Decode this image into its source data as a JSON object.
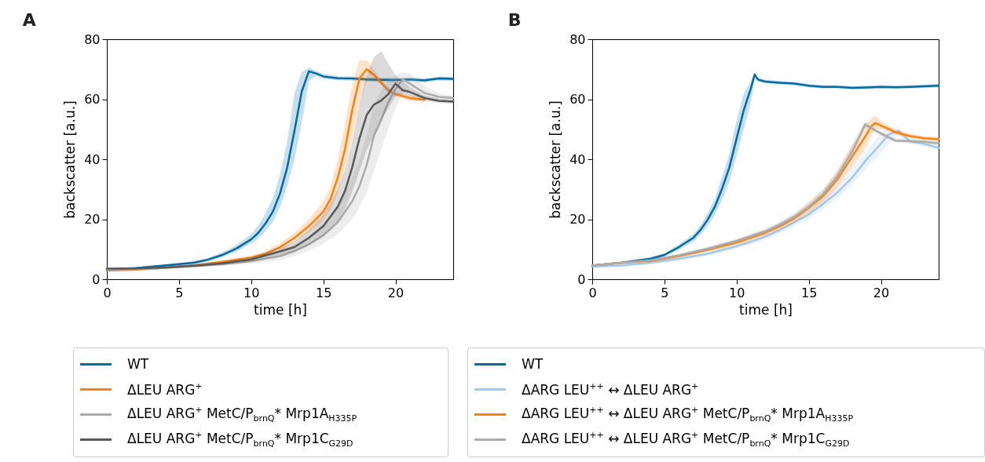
{
  "chart_data": [
    {
      "type": "line",
      "title": "A",
      "xlabel": "time [h]",
      "ylabel": "backscatter [a.u.]",
      "xlim": [
        0,
        24
      ],
      "xticks": [
        0,
        5,
        10,
        15,
        20
      ],
      "ylim": [
        0,
        80
      ],
      "yticks": [
        0,
        20,
        40,
        60,
        80
      ],
      "legend": "bottom",
      "line_style": "solid",
      "series": [
        {
          "name": "WT",
          "color": "#006ba4",
          "x": [
            0,
            2,
            4,
            6,
            7,
            8,
            9,
            10,
            10.5,
            11,
            11.5,
            12,
            12.5,
            13,
            13.5,
            14,
            14.5,
            15,
            16,
            17,
            18,
            19,
            20,
            21,
            22,
            23,
            24
          ],
          "values": [
            3.3,
            3.7,
            4.6,
            5.5,
            6.5,
            8.1,
            10.3,
            13.3,
            15.5,
            18.6,
            22.5,
            28.6,
            37.3,
            49.5,
            62.5,
            69.3,
            68.6,
            67.6,
            67,
            66.9,
            66.6,
            66.5,
            66.4,
            66.6,
            66.3,
            66.9,
            66.8
          ],
          "lower": [
            3,
            3.4,
            4.2,
            5,
            5.9,
            7.3,
            9.2,
            11.8,
            13.5,
            16,
            19,
            24,
            31,
            40,
            52,
            66,
            67.8,
            66.8,
            66.3,
            66.2,
            65.9,
            65.8,
            65.7,
            65.9,
            65.6,
            66.2,
            66.1
          ],
          "upper": [
            3.6,
            4,
            5,
            6,
            7.1,
            8.9,
            11.5,
            15,
            18,
            22,
            27,
            35,
            46,
            62,
            69,
            70.5,
            69.4,
            68.4,
            67.7,
            67.6,
            67.3,
            67.2,
            67.1,
            67.3,
            67,
            67.6,
            67.5
          ]
        },
        {
          "name": "ΔLEU ARG$^{+}$",
          "color": "#ff800e",
          "x": [
            0,
            2,
            4,
            6,
            8,
            10,
            11,
            12,
            13,
            14,
            15,
            15.5,
            16,
            16.5,
            17,
            17.5,
            18,
            18.5,
            19,
            19.5,
            20,
            21,
            22
          ],
          "values": [
            2.9,
            3.2,
            3.8,
            4.6,
            5.8,
            7.2,
            8.5,
            10.7,
            13.8,
            17.7,
            22.5,
            26.8,
            33.8,
            43.4,
            56.4,
            66.9,
            70,
            68.2,
            65.6,
            63,
            61.7,
            60.4,
            59.8
          ],
          "lower": [
            2.6,
            2.9,
            3.4,
            4.1,
            5.2,
            6.5,
            7.6,
            9.5,
            12.2,
            15.5,
            19.5,
            23,
            28.5,
            36,
            47,
            58,
            66,
            66.5,
            64.5,
            62,
            60.8,
            59.5,
            58.9
          ],
          "upper": [
            3.2,
            3.5,
            4.2,
            5.1,
            6.4,
            7.9,
            9.4,
            12,
            15.5,
            20,
            26,
            31,
            40,
            52,
            65,
            73,
            73,
            70,
            66.8,
            64,
            62.6,
            61.3,
            60.7
          ]
        },
        {
          "name": "ΔLEU ARG$^{+}$ MetC/P$_{brnQ}$* Mrp1A$_{H335P}$",
          "color": "#ababab",
          "x": [
            0,
            2,
            4,
            6,
            8,
            10,
            12,
            13,
            14,
            15,
            16,
            17,
            17.5,
            18,
            18.5,
            19,
            19.5,
            20,
            20.5,
            21,
            22,
            23,
            24
          ],
          "values": [
            3.2,
            3.4,
            3.8,
            4.4,
            5,
            6,
            7.7,
            9.4,
            11.6,
            14.6,
            19,
            26,
            31,
            38,
            47.7,
            53,
            59,
            63.4,
            66.6,
            65.2,
            62.1,
            60.8,
            60.4
          ],
          "lower": [
            2.9,
            3.1,
            3.4,
            3.9,
            4.4,
            5.2,
            6.5,
            7.8,
            9.5,
            11.8,
            15,
            20,
            24,
            29,
            36,
            43,
            50,
            57,
            62,
            63,
            60.8,
            59.8,
            59.6
          ],
          "upper": [
            3.5,
            3.7,
            4.2,
            4.9,
            5.6,
            6.9,
            9.2,
            11.5,
            14.5,
            18.5,
            24.5,
            34,
            40,
            48,
            58,
            63,
            66,
            68,
            69,
            68.5,
            64.5,
            62,
            61.2
          ]
        },
        {
          "name": "ΔLEU ARG$^{+}$ MetC/P$_{brnQ}$* Mrp1C$_{G29D}$",
          "color": "#595959",
          "x": [
            0,
            2,
            4,
            6,
            8,
            10,
            12,
            13,
            14,
            15,
            16,
            16.5,
            17,
            17.5,
            18,
            18.5,
            19,
            19.5,
            20,
            20.5,
            21,
            22,
            23,
            24
          ],
          "values": [
            3.5,
            3.6,
            3.9,
            4.5,
            5.3,
            6.6,
            9.3,
            10.7,
            13.8,
            17.7,
            24.2,
            29.4,
            37.3,
            46.9,
            54.7,
            58.2,
            59.5,
            61.7,
            65.2,
            63,
            62.4,
            60.4,
            59.5,
            59.2
          ],
          "lower": [
            3.2,
            3.3,
            3.5,
            4,
            4.7,
            5.8,
            8,
            9.2,
            11.5,
            14.5,
            19.5,
            23.5,
            29,
            36,
            43,
            48,
            53,
            57,
            61,
            61.5,
            61,
            59.5,
            58.8,
            58.5
          ],
          "upper": [
            3.8,
            3.9,
            4.3,
            5,
            5.9,
            7.4,
            10.6,
            12.4,
            16.5,
            21.5,
            30,
            36,
            46,
            58,
            68,
            74,
            76,
            72,
            68,
            66,
            64,
            61.3,
            60.2,
            59.9
          ]
        }
      ]
    },
    {
      "type": "line",
      "title": "B",
      "xlabel": "time [h]",
      "ylabel": "backscatter [a.u.]",
      "xlim": [
        0,
        24
      ],
      "xticks": [
        0,
        5,
        10,
        15,
        20
      ],
      "ylim": [
        0,
        80
      ],
      "yticks": [
        0,
        20,
        40,
        60,
        80
      ],
      "legend": "bottom",
      "line_style": "solid",
      "series": [
        {
          "name": "WT",
          "color": "#006ba4",
          "x": [
            0,
            2,
            4,
            5,
            6,
            7,
            7.5,
            8,
            8.5,
            9,
            9.5,
            10,
            10.5,
            11,
            11.25,
            11.5,
            12,
            13,
            14,
            15,
            16,
            17,
            18,
            19,
            20,
            21,
            22,
            23,
            24
          ],
          "values": [
            4.6,
            5.5,
            6.8,
            8.1,
            10.7,
            13.8,
            16.4,
            19.9,
            24.2,
            30.3,
            37.3,
            46.9,
            56.4,
            63.8,
            68.2,
            66.5,
            65.9,
            65.5,
            65.2,
            64.5,
            64.1,
            64.1,
            63.8,
            63.9,
            64.1,
            64,
            64.1,
            64.3,
            64.5
          ],
          "lower": [
            4.3,
            5.1,
            6.3,
            7.5,
            9.8,
            12.5,
            14.8,
            17.8,
            21.5,
            26.5,
            32.5,
            41,
            50,
            59,
            66.5,
            65.8,
            65.3,
            64.9,
            64.6,
            63.9,
            63.5,
            63.5,
            63.2,
            63.3,
            63.5,
            63.4,
            63.5,
            63.7,
            63.9
          ],
          "upper": [
            4.9,
            5.9,
            7.3,
            8.7,
            11.6,
            15.1,
            18,
            22,
            27,
            34,
            42,
            53,
            62,
            66,
            69,
            67.2,
            66.5,
            66.1,
            65.8,
            65.1,
            64.7,
            64.7,
            64.4,
            64.5,
            64.7,
            64.6,
            64.7,
            64.9,
            65.1
          ]
        },
        {
          "name": "ΔARG LEU$^{++}$ ↔ ΔLEU ARG$^{+}$",
          "color": "#a2c8ec",
          "x": [
            0,
            2,
            4,
            6,
            8,
            10,
            11,
            12,
            13,
            14,
            15,
            16,
            17,
            18,
            19,
            20,
            20.5,
            21,
            21.2,
            22,
            23,
            24
          ],
          "values": [
            4.2,
            4.6,
            5.5,
            6.8,
            8.5,
            11,
            12.5,
            14.2,
            16.4,
            19,
            21.6,
            25.1,
            29,
            33.8,
            39.9,
            45.1,
            48.2,
            49,
            49.5,
            46,
            45.1,
            43.8
          ],
          "lower": [
            3.8,
            4.2,
            5,
            6.2,
            7.8,
            10.2,
            11.6,
            13.2,
            15.2,
            17.6,
            20,
            23.3,
            27,
            31.5,
            37,
            42,
            45,
            47,
            48,
            45.2,
            44.3,
            43
          ],
          "upper": [
            4.6,
            5,
            6,
            7.4,
            9.2,
            11.8,
            13.4,
            15.2,
            17.6,
            20.4,
            23.2,
            26.9,
            31,
            36.5,
            43,
            48.5,
            50.5,
            50.5,
            50.8,
            46.8,
            45.9,
            44.6
          ]
        },
        {
          "name": "ΔARG LEU$^{++}$ ↔ ΔLEU ARG$^{+}$ MetC/P$_{brnQ}$* Mrp1A$_{H335P}$",
          "color": "#ff800e",
          "x": [
            0,
            2,
            4,
            6,
            8,
            10,
            12,
            13,
            14,
            15,
            16,
            17,
            18,
            19,
            19.3,
            19.6,
            20,
            20.5,
            21,
            22,
            23,
            24
          ],
          "values": [
            4.6,
            5.5,
            6.1,
            7.7,
            9.8,
            12.2,
            15.5,
            17.7,
            20.3,
            23.8,
            27.7,
            33.4,
            40.8,
            48.2,
            50.8,
            52.1,
            51.2,
            50.2,
            49,
            47.7,
            47,
            46.7
          ],
          "lower": [
            4.3,
            5.1,
            5.7,
            7.2,
            9.2,
            11.4,
            14.5,
            16.5,
            18.9,
            22,
            25.5,
            30.5,
            37,
            44,
            47.5,
            50,
            50,
            49.3,
            48.2,
            47,
            46.3,
            46
          ],
          "upper": [
            4.9,
            5.9,
            6.5,
            8.2,
            10.4,
            13,
            16.5,
            18.9,
            21.7,
            25.6,
            29.9,
            36.3,
            44.6,
            52,
            53.5,
            54.5,
            52.8,
            51.2,
            50,
            48.5,
            47.7,
            47.4
          ]
        },
        {
          "name": "ΔARG LEU$^{++}$ ↔ ΔLEU ARG$^{+}$ MetC/P$_{brnQ}$* Mrp1C$_{G29D}$",
          "color": "#ababab",
          "x": [
            0,
            2,
            4,
            6,
            8,
            10,
            12,
            13,
            14,
            15,
            16,
            17,
            18,
            18.5,
            18.9,
            19.5,
            20,
            21,
            22,
            23,
            24
          ],
          "values": [
            4.6,
            5.5,
            6.3,
            8,
            10.2,
            12.8,
            16,
            18.2,
            20.8,
            24.2,
            28.4,
            34.5,
            42.5,
            47.5,
            51.6,
            49.9,
            48.6,
            46.2,
            46,
            45.8,
            45.3
          ],
          "lower": [
            4.3,
            5.1,
            5.9,
            7.5,
            9.6,
            12.1,
            15.1,
            17.2,
            19.6,
            22.8,
            26.8,
            32.5,
            40,
            45.5,
            50.5,
            49,
            47.8,
            45.5,
            45.3,
            45.1,
            44.6
          ],
          "upper": [
            4.9,
            5.9,
            6.7,
            8.5,
            10.8,
            13.5,
            16.9,
            19.2,
            22,
            25.6,
            30,
            36.5,
            45,
            49.5,
            52.7,
            50.8,
            49.4,
            46.9,
            46.7,
            46.5,
            46
          ]
        }
      ]
    }
  ]
}
